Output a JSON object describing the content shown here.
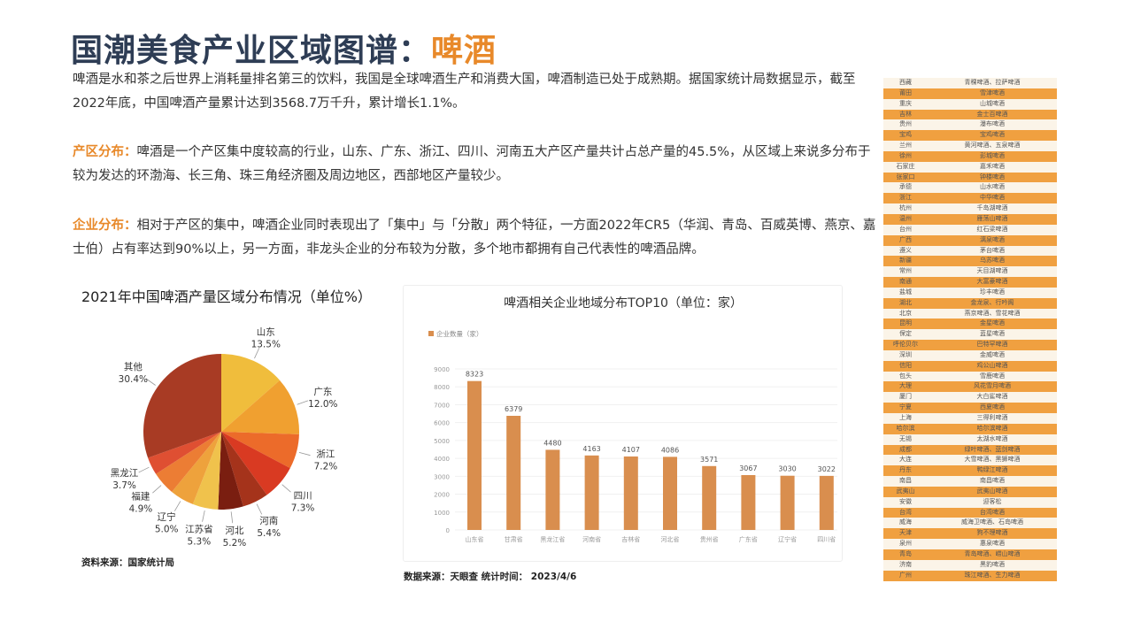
{
  "header": {
    "title": "国潮美食产业区域图谱：",
    "title_highlight": "啤酒"
  },
  "paragraphs": [
    {
      "lead": "",
      "text": "啤酒是水和茶之后世界上消耗量排名第三的饮料，我国是全球啤酒生产和消费大国，啤酒制造已处于成熟期。据国家统计局数据显示，截至2022年底，中国啤酒产量累计达到3568.7万千升，累计增长1.1%。"
    },
    {
      "lead": "产区分布：",
      "text": "啤酒是一个产区集中度较高的行业，山东、广东、浙江、四川、河南五大产区产量共计占总产量的45.5%，从区域上来说多分布于较为发达的环渤海、长三角、珠三角经济圈及周边地区，西部地区产量较少。"
    },
    {
      "lead": "企业分布：",
      "text": "相对于产区的集中，啤酒企业同时表现出了「集中」与「分散」两个特征，一方面2022年CR5（华润、青岛、百威英博、燕京、嘉士伯）占有率达到90%以上，另一方面，非龙头企业的分布较为分散，多个地市都拥有自己代表性的啤酒品牌。"
    }
  ],
  "chart_data": [
    {
      "type": "pie",
      "title": "2021年中国啤酒产量区域分布情况（单位%）",
      "categories": [
        "山东",
        "广东",
        "浙江",
        "四川",
        "河南",
        "河北",
        "江苏省",
        "辽宁",
        "福建",
        "黑龙江",
        "其他"
      ],
      "values": [
        13.5,
        12.0,
        7.2,
        7.3,
        5.4,
        5.2,
        5.3,
        5.0,
        4.9,
        3.7,
        30.4
      ],
      "labels": [
        "13.5%",
        "12.0%",
        "7.2%",
        "7.3%",
        "5.4%",
        "5.2%",
        "5.3%",
        "5.0%",
        "4.9%",
        "3.7%",
        "30.4%"
      ],
      "colors": [
        "#f0bd3c",
        "#f0a030",
        "#ec6b2a",
        "#d93a22",
        "#a5331b",
        "#7a1e10",
        "#f0c24c",
        "#eea23c",
        "#ec7d34",
        "#df4f32",
        "#a83b24"
      ],
      "source": "资料来源：国家统计局"
    },
    {
      "type": "bar",
      "title": "啤酒相关企业地域分布TOP10（单位：家）",
      "legend": "企业数量（家）",
      "legend_position": "top-left",
      "categories": [
        "山东省",
        "甘肃省",
        "黑龙江省",
        "河南省",
        "吉林省",
        "河北省",
        "贵州省",
        "广东省",
        "辽宁省",
        "四川省"
      ],
      "values": [
        8323,
        6379,
        4480,
        4163,
        4107,
        4086,
        3571,
        3067,
        3030,
        3022
      ],
      "ylim": [
        0,
        9000
      ],
      "yticks": [
        0,
        1000,
        2000,
        3000,
        4000,
        5000,
        6000,
        7000,
        8000,
        9000
      ],
      "grid": true,
      "color": "#d98e4e",
      "source": "数据来源：天眼查  统计时间： 2023/4/6"
    }
  ],
  "brand_table": [
    [
      "西藏",
      "青稞啤酒、拉萨啤酒"
    ],
    [
      "莆田",
      "雪津啤酒"
    ],
    [
      "重庆",
      "山城啤酒"
    ],
    [
      "吉林",
      "金士百啤酒"
    ],
    [
      "贵州",
      "瀑布啤酒"
    ],
    [
      "宝鸡",
      "宝鸡啤酒"
    ],
    [
      "兰州",
      "黄河啤酒、五泉啤酒"
    ],
    [
      "徐州",
      "彭城啤酒"
    ],
    [
      "石家庄",
      "嘉禾啤酒"
    ],
    [
      "张家口",
      "钟楼啤酒"
    ],
    [
      "承德",
      "山水啤酒"
    ],
    [
      "浙江",
      "中华啤酒"
    ],
    [
      "杭州",
      "千岛湖啤酒"
    ],
    [
      "温州",
      "雁荡山啤酒"
    ],
    [
      "台州",
      "红石梁啤酒"
    ],
    [
      "广西",
      "漓泉啤酒"
    ],
    [
      "遵义",
      "茅台啤酒"
    ],
    [
      "新疆",
      "乌苏啤酒"
    ],
    [
      "常州",
      "天目湖啤酒"
    ],
    [
      "南通",
      "大富豪啤酒"
    ],
    [
      "盐城",
      "珍丰啤酒"
    ],
    [
      "湖北",
      "金龙泉、行吟阁"
    ],
    [
      "北京",
      "燕京啤酒、雪花啤酒"
    ],
    [
      "昆明",
      "金星啤酒"
    ],
    [
      "保定",
      "蓝星啤酒"
    ],
    [
      "呼伦贝尔",
      "巴特罕啤酒"
    ],
    [
      "深圳",
      "金威啤酒"
    ],
    [
      "信阳",
      "鸡公山啤酒"
    ],
    [
      "包头",
      "雪鹿啤酒"
    ],
    [
      "大理",
      "风花雪月啤酒"
    ],
    [
      "厦门",
      "大白鲨啤酒"
    ],
    [
      "宁夏",
      "西夏啤酒"
    ],
    [
      "上海",
      "三得利啤酒"
    ],
    [
      "哈尔滨",
      "哈尔滨啤酒"
    ],
    [
      "无锡",
      "太湖水啤酒"
    ],
    [
      "成都",
      "绿叶啤酒、蓝剑啤酒"
    ],
    [
      "大连",
      "大雪啤酒、黑狮啤酒"
    ],
    [
      "丹东",
      "鸭绿江啤酒"
    ],
    [
      "南昌",
      "南昌啤酒"
    ],
    [
      "武夷山",
      "武夷山啤酒"
    ],
    [
      "安徽",
      "迎客松"
    ],
    [
      "台湾",
      "台湾啤酒"
    ],
    [
      "威海",
      "威海卫啤酒、石岛啤酒"
    ],
    [
      "天津",
      "狗不理啤酒"
    ],
    [
      "泉州",
      "惠泉啤酒"
    ],
    [
      "青岛",
      "青岛啤酒、崂山啤酒"
    ],
    [
      "济南",
      "黑豹啤酒"
    ],
    [
      "广州",
      "珠江啤酒、生力啤酒"
    ]
  ]
}
